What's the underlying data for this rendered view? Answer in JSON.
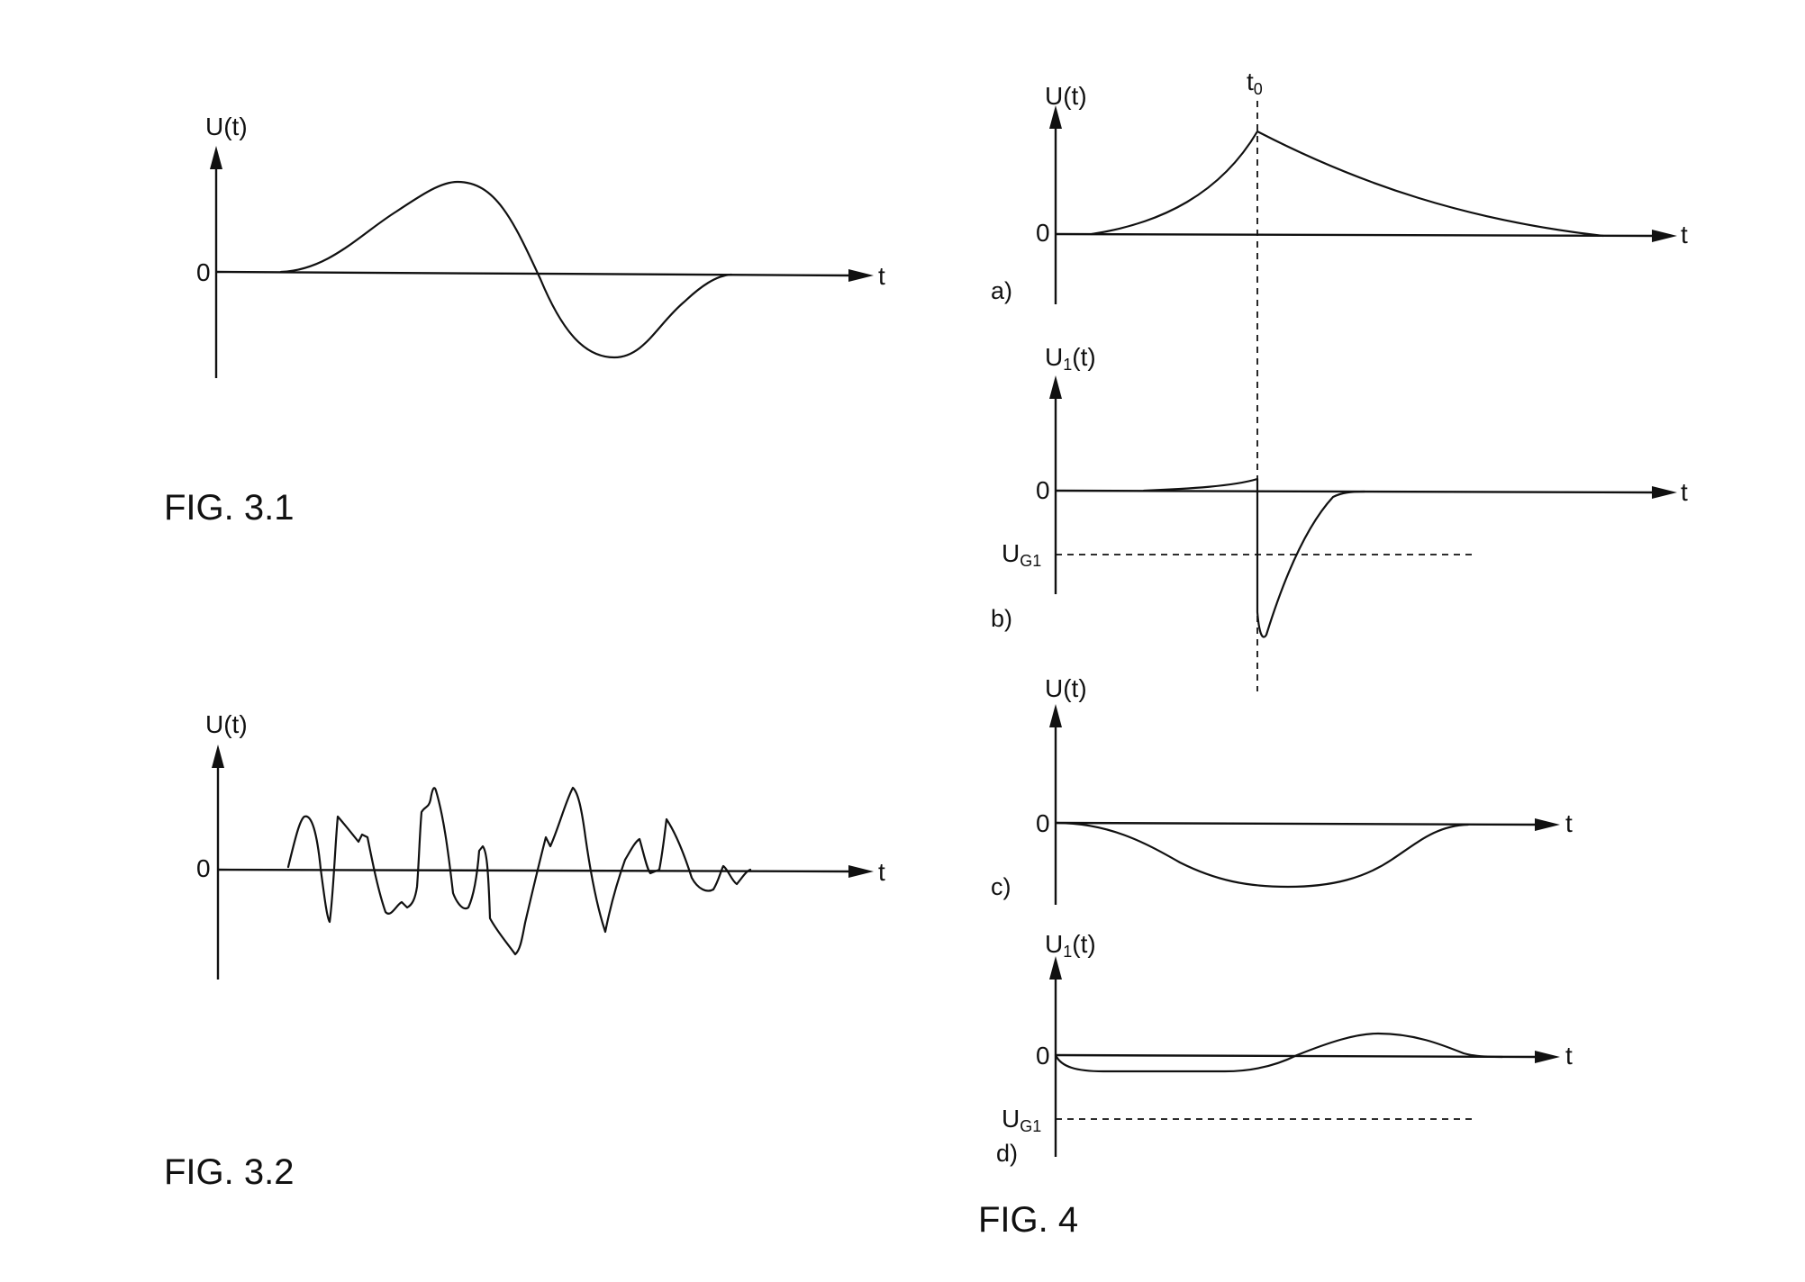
{
  "fig31": {
    "title": "FIG. 3.1",
    "y_label": "U(t)",
    "x_label": "t",
    "zero_label": "0"
  },
  "fig32": {
    "title": "FIG. 3.2",
    "y_label": "U(t)",
    "x_label": "t",
    "zero_label": "0"
  },
  "fig4": {
    "title": "FIG. 4",
    "t0_label": "t",
    "t0_sub": "0",
    "a": {
      "panel_label": "a)",
      "y_label": "U(t)",
      "x_label": "t",
      "zero_label": "0"
    },
    "b": {
      "panel_label": "b)",
      "y_label_main": "U",
      "y_label_sub": "1",
      "y_label_rest": "(t)",
      "x_label": "t",
      "zero_label": "0",
      "threshold_main": "U",
      "threshold_sub": "G1"
    },
    "c": {
      "panel_label": "c)",
      "y_label": "U(t)",
      "x_label": "t",
      "zero_label": "0"
    },
    "d": {
      "panel_label": "d)",
      "y_label_main": "U",
      "y_label_sub": "1",
      "y_label_rest": "(t)",
      "x_label": "t",
      "zero_label": "0",
      "threshold_main": "U",
      "threshold_sub": "G1"
    }
  }
}
